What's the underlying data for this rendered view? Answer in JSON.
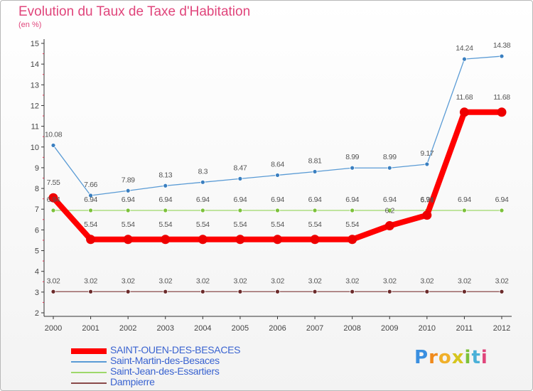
{
  "title": "Evolution du Taux de Taxe d'Habitation",
  "unit": "(en %)",
  "logo": {
    "letters": [
      "P",
      "r",
      "o",
      "x",
      "i",
      "t",
      "i"
    ],
    "colors": [
      "#3a8fe0",
      "#f08a1c",
      "#f0b02a",
      "#d6c51e",
      "#7cc13a",
      "#4ab0d8",
      "#e0457b"
    ]
  },
  "chart_data": {
    "type": "line",
    "x": [
      "2000",
      "2001",
      "2002",
      "2003",
      "2004",
      "2005",
      "2006",
      "2007",
      "2008",
      "2009",
      "2010",
      "2011",
      "2012"
    ],
    "ylim": [
      2,
      15
    ],
    "yticks": [
      "2",
      "3",
      "4",
      "5",
      "6",
      "7",
      "8",
      "9",
      "10",
      "11",
      "12",
      "13",
      "14",
      "15"
    ],
    "grid": false,
    "legend_position": "bottom-left",
    "series": [
      {
        "name": "SAINT-OUEN-DES-BESACES",
        "color": "#ff0000",
        "marker_color": "#ee0000",
        "width": 8,
        "label_offset": 18,
        "values": [
          7.55,
          5.54,
          5.54,
          5.54,
          5.54,
          5.54,
          5.54,
          5.54,
          5.54,
          6.2,
          6.71,
          11.68,
          11.68
        ],
        "labels": [
          "7.55",
          "5.54",
          "5.54",
          "5.54",
          "5.54",
          "5.54",
          "5.54",
          "5.54",
          "5.54",
          "6.2",
          "6.71",
          "11.68",
          "11.68"
        ]
      },
      {
        "name": "Saint-Martin-des-Besaces",
        "color": "#5a9bd5",
        "marker_color": "#3a7fc0",
        "width": 1.3,
        "label_offset": 12,
        "values": [
          10.08,
          7.66,
          7.89,
          8.13,
          8.3,
          8.47,
          8.64,
          8.81,
          8.99,
          8.99,
          9.17,
          14.24,
          14.38
        ],
        "labels": [
          "10.08",
          "7.66",
          "7.89",
          "8.13",
          "8.3",
          "8.47",
          "8.64",
          "8.81",
          "8.99",
          "8.99",
          "9.17",
          "14.24",
          "14.38"
        ]
      },
      {
        "name": "Saint-Jean-des-Essartiers",
        "color": "#9ed86a",
        "marker_color": "#7cc13a",
        "width": 1.3,
        "label_offset": 12,
        "values": [
          6.94,
          6.94,
          6.94,
          6.94,
          6.94,
          6.94,
          6.94,
          6.94,
          6.94,
          6.94,
          6.94,
          6.94,
          6.94
        ],
        "labels": [
          "6.94",
          "6.94",
          "6.94",
          "6.94",
          "6.94",
          "6.94",
          "6.94",
          "6.94",
          "6.94",
          "6.94",
          "6.94",
          "6.94",
          "6.94"
        ]
      },
      {
        "name": "Dampierre",
        "color": "#8a4a4a",
        "marker_color": "#6b2a2a",
        "width": 1.3,
        "label_offset": 12,
        "values": [
          3.02,
          3.02,
          3.02,
          3.02,
          3.02,
          3.02,
          3.02,
          3.02,
          3.02,
          3.02,
          3.02,
          3.02,
          3.02
        ],
        "labels": [
          "3.02",
          "3.02",
          "3.02",
          "3.02",
          "3.02",
          "3.02",
          "3.02",
          "3.02",
          "3.02",
          "3.02",
          "3.02",
          "3.02",
          "3.02"
        ]
      }
    ]
  }
}
